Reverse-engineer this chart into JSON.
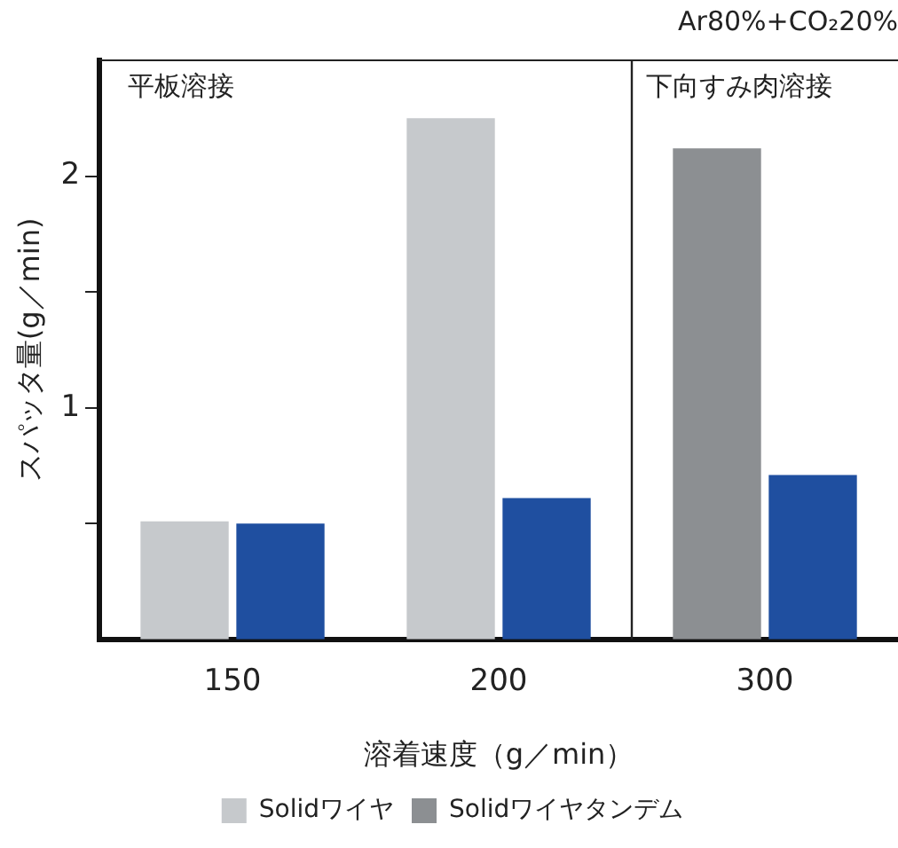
{
  "chart_data": {
    "type": "bar",
    "subtitle": "Ar80%+CO₂20%",
    "xlabel": "溶着速度（g／min）",
    "ylabel": "スパッタ量(g／min)",
    "categories": [
      "150",
      "200",
      "300"
    ],
    "series": [
      {
        "name": "Solidワイヤ",
        "color": "#c6c9cc",
        "values": [
          0.51,
          2.25,
          null
        ]
      },
      {
        "name": "Solidワイヤタンデム",
        "color": "#8c8f92",
        "values": [
          null,
          null,
          2.12
        ]
      },
      {
        "color": "#1f4fa0",
        "values": [
          0.5,
          0.61,
          0.71
        ]
      }
    ],
    "ylim": [
      0,
      2.5
    ],
    "yticks": [
      {
        "value": 0.5,
        "label": null
      },
      1,
      {
        "value": 1.5,
        "label": null
      },
      2
    ],
    "annotations": [
      "平板溶接",
      "下向すみ肉溶接"
    ],
    "grid": false,
    "legend": "bottom"
  }
}
